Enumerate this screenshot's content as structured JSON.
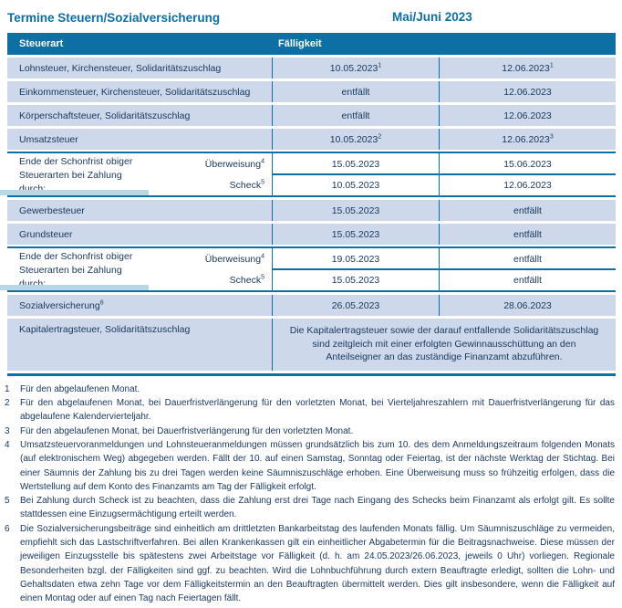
{
  "header": {
    "title": "Termine Steuern/Sozialversicherung",
    "period": "Mai/Juni 2023"
  },
  "table": {
    "columns": {
      "tax": "Steuerart",
      "due": "Fälligkeit"
    },
    "rows": [
      {
        "label": "Lohnsteuer, Kirchensteuer, Solidaritätszuschlag",
        "may": "10.05.2023",
        "may_sup": "1",
        "jun": "12.06.2023",
        "jun_sup": "1"
      },
      {
        "label": "Einkommensteuer, Kirchensteuer, Solidaritätszuschlag",
        "may": "entfällt",
        "jun": "12.06.2023"
      },
      {
        "label": "Körperschaftsteuer, Solidaritätszuschlag",
        "may": "entfällt",
        "jun": "12.06.2023"
      },
      {
        "label": "Umsatzsteuer",
        "may": "10.05.2023",
        "may_sup": "2",
        "jun": "12.06.2023",
        "jun_sup": "3"
      },
      {
        "label": "Gewerbesteuer",
        "may": "15.05.2023",
        "jun": "entfällt"
      },
      {
        "label": "Grundsteuer",
        "may": "15.05.2023",
        "jun": "entfällt"
      },
      {
        "label": "Sozialversicherung",
        "label_sup": "6",
        "may": "26.05.2023",
        "jun": "28.06.2023"
      }
    ],
    "schonfrist": {
      "label": "Ende der Schonfrist obiger Steuerarten bei Zahlung durch:",
      "transfer_label": "Überweisung",
      "transfer_sup": "4",
      "check_label": "Scheck",
      "check_sup": "5",
      "first": {
        "transfer_may": "15.05.2023",
        "transfer_jun": "15.06.2023",
        "check_may": "10.05.2023",
        "check_jun": "12.06.2023"
      },
      "second": {
        "transfer_may": "19.05.2023",
        "transfer_jun": "entfällt",
        "check_may": "15.05.2023",
        "check_jun": "entfällt"
      }
    },
    "capital_gains": {
      "label": "Kapitalertragsteuer, Solidaritätszuschlag",
      "note": "Die Kapitalertragsteuer sowie der darauf entfallende Solidaritätszuschlag sind zeitgleich mit einer erfolgten Gewinnausschüttung an den Anteilseigner an das zuständige Finanzamt abzuführen."
    }
  },
  "footnotes": [
    {
      "num": "1",
      "text": "Für den abgelaufenen Monat."
    },
    {
      "num": "2",
      "text": "Für den abgelaufenen Monat, bei Dauerfristverlängerung für den vorletzten Monat, bei Vierteljahreszahlern mit Dauerfristverlängerung für das abgelaufene Kalendervierteljahr."
    },
    {
      "num": "3",
      "text": "Für den abgelaufenen Monat, bei Dauerfristverlängerung für den vorletzten Monat."
    },
    {
      "num": "4",
      "text": "Umsatzsteuervoranmeldungen und Lohnsteueranmeldungen müssen grundsätzlich bis zum 10. des dem Anmeldungszeitraum folgenden Monats (auf elektronischem Weg) abgegeben werden. Fällt der 10. auf einen Samstag, Sonntag oder Feiertag, ist der nächste Werktag der Stichtag. Bei einer Säumnis der Zahlung bis zu drei Tagen werden keine Säumniszuschläge erhoben. Eine Überweisung muss so frühzeitig erfolgen, dass die Wertstellung auf dem Konto des Finanzamts am Tag der Fälligkeit erfolgt."
    },
    {
      "num": "5",
      "text": "Bei Zahlung durch Scheck ist zu beachten, dass die Zahlung erst drei Tage nach Eingang des Schecks beim Finanzamt als erfolgt gilt. Es sollte stattdessen eine Einzugsermächtigung erteilt werden."
    },
    {
      "num": "6",
      "text": "Die Sozialversicherungsbeiträge sind einheitlich am drittletzten Bankarbeitstag des laufenden Monats fällig. Um Säumniszuschläge zu vermeiden, empfiehlt sich das Lastschriftverfahren. Bei allen Krankenkassen gilt ein einheitlicher Abgabetermin für die Beitragsnachweise. Diese müssen der jeweiligen Einzugsstelle bis spätestens zwei Arbeitstage vor Fälligkeit (d. h. am 24.05.2023/26.06.2023, jeweils 0 Uhr) vorliegen. Regionale Besonderheiten bzgl. der Fälligkeiten sind ggf. zu beachten. Wird die Lohnbuchführung durch extern Beauftragte erledigt, sollten die Lohn- und Gehaltsdaten etwa zehn Tage vor dem Fälligkeitstermin an den Beauftragten übermittelt werden. Dies gilt insbesondere, wenn die Fälligkeit auf einen Montag oder auf einen Tag nach Feiertagen fällt."
    }
  ],
  "colors": {
    "accent": "#0e6fa5",
    "row_background": "#cdd9ea",
    "text": "#17365d",
    "highlight_bar": "#b9d8e3"
  }
}
